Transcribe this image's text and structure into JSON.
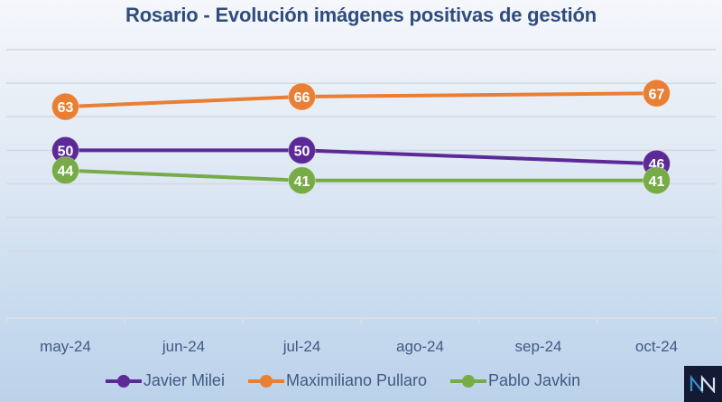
{
  "chart_data": {
    "type": "line",
    "title": "Rosario - Evolución imágenes positivas de gestión",
    "xlabel": "",
    "ylabel": "",
    "categories": [
      "may-24",
      "jun-24",
      "jul-24",
      "ago-24",
      "sep-24",
      "oct-24"
    ],
    "ylim": [
      0,
      80
    ],
    "yticks_step": 10,
    "grid": true,
    "show_y_tick_labels": false,
    "legend_position": "bottom",
    "series": [
      {
        "name": "Javier Milei",
        "color": "#5b2a96",
        "values": [
          50,
          null,
          50,
          null,
          null,
          46
        ]
      },
      {
        "name": "Maximiliano Pullaro",
        "color": "#e97f35",
        "values": [
          63,
          null,
          66,
          null,
          null,
          67
        ]
      },
      {
        "name": "Pablo Javkin",
        "color": "#77ab47",
        "values": [
          44,
          null,
          41,
          null,
          null,
          41
        ]
      }
    ]
  },
  "logo": {
    "text": "NN",
    "name": "nn-logo"
  }
}
